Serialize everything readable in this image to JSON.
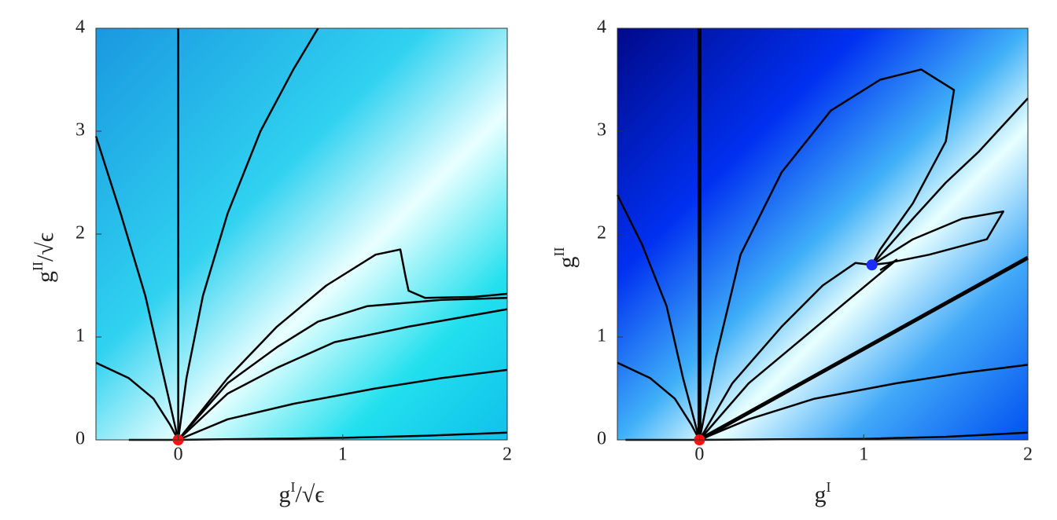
{
  "chart_data": [
    {
      "type": "flow",
      "xlabel": [
        "g",
        "I",
        "/√ϵ"
      ],
      "ylabel": [
        "g",
        "II",
        "/√ϵ"
      ],
      "xlim": [
        -0.5,
        2
      ],
      "ylim": [
        0,
        4
      ],
      "xticks": [
        0,
        1,
        2
      ],
      "yticks": [
        0,
        1,
        2,
        3,
        4
      ],
      "line_color": "#000000",
      "series": [
        {
          "x": [
            0,
            0
          ],
          "values": [
            0,
            4
          ],
          "width": 2.5
        },
        {
          "x": [
            -0.5,
            -0.35,
            -0.2,
            -0.1,
            0
          ],
          "values": [
            2.95,
            2.2,
            1.4,
            0.7,
            0
          ],
          "width": 2.5
        },
        {
          "x": [
            0,
            0.05,
            0.15,
            0.3,
            0.5,
            0.7,
            0.85
          ],
          "values": [
            0,
            0.6,
            1.4,
            2.2,
            3.0,
            3.6,
            4
          ],
          "width": 2.5
        },
        {
          "x": [
            -0.5,
            -0.3,
            -0.15,
            -0.05,
            0
          ],
          "values": [
            0.75,
            0.6,
            0.4,
            0.15,
            0
          ],
          "width": 2.5
        },
        {
          "x": [
            -0.3,
            0,
            0.5,
            1,
            1.5,
            2
          ],
          "values": [
            0,
            0,
            0.01,
            0.02,
            0.04,
            0.07
          ],
          "width": 2.5
        },
        {
          "x": [
            0,
            0.3,
            0.7,
            1.2,
            1.6,
            2
          ],
          "values": [
            0,
            0.2,
            0.35,
            0.5,
            0.6,
            0.68
          ],
          "width": 2.5
        },
        {
          "x": [
            0,
            0.3,
            0.6,
            0.95,
            1.4,
            2
          ],
          "values": [
            0,
            0.45,
            0.7,
            0.95,
            1.1,
            1.27
          ],
          "width": 2.5
        },
        {
          "x": [
            0,
            0.3,
            0.6,
            0.85,
            1.15,
            1.6,
            2
          ],
          "values": [
            0,
            0.55,
            0.9,
            1.15,
            1.3,
            1.36,
            1.38
          ],
          "width": 2.5
        },
        {
          "x": [
            0,
            0.3,
            0.6,
            0.9,
            1.2,
            1.35,
            1.38,
            1.4,
            1.5,
            1.8,
            2
          ],
          "values": [
            0,
            0.6,
            1.1,
            1.5,
            1.8,
            1.85,
            1.6,
            1.45,
            1.38,
            1.39,
            1.42
          ],
          "width": 2.5
        }
      ],
      "points": [
        {
          "x": 0,
          "y": 0,
          "color": "#ff1010"
        }
      ]
    },
    {
      "type": "flow",
      "xlabel": [
        "g",
        "I",
        ""
      ],
      "ylabel": [
        "g",
        "II",
        ""
      ],
      "xlim": [
        -0.5,
        2
      ],
      "ylim": [
        0,
        4
      ],
      "xticks": [
        0,
        1,
        2
      ],
      "yticks": [
        0,
        1,
        2,
        3,
        4
      ],
      "line_color": "#000000",
      "series": [
        {
          "x": [
            0,
            0
          ],
          "values": [
            0,
            4
          ],
          "width": 5
        },
        {
          "x": [
            -0.5,
            -0.35,
            -0.2,
            -0.1,
            0
          ],
          "values": [
            2.38,
            1.9,
            1.3,
            0.6,
            0
          ],
          "width": 2.5
        },
        {
          "x": [
            -0.5,
            -0.3,
            -0.15,
            -0.05,
            0
          ],
          "values": [
            0.75,
            0.6,
            0.4,
            0.15,
            0
          ],
          "width": 2.5
        },
        {
          "x": [
            -0.45,
            0,
            0.5,
            1,
            1.5,
            2
          ],
          "values": [
            0,
            0,
            0.005,
            0.01,
            0.03,
            0.07
          ],
          "width": 2.5
        },
        {
          "x": [
            0,
            0.3,
            0.7,
            1.2,
            1.6,
            2
          ],
          "values": [
            0,
            0.2,
            0.4,
            0.55,
            0.65,
            0.73
          ],
          "width": 2.5
        },
        {
          "x": [
            0,
            2
          ],
          "values": [
            0,
            1.77
          ],
          "width": 5
        },
        {
          "x": [
            0,
            0.1,
            0.25,
            0.5,
            0.8,
            1.1,
            1.35,
            1.55,
            1.5,
            1.3,
            1.1,
            1.05
          ],
          "values": [
            0,
            0.8,
            1.8,
            2.6,
            3.2,
            3.5,
            3.6,
            3.4,
            2.9,
            2.3,
            1.85,
            1.7
          ],
          "width": 2.5
        },
        {
          "x": [
            2,
            1.7,
            1.5,
            1.3,
            1.05
          ],
          "values": [
            3.32,
            2.8,
            2.5,
            2.15,
            1.7
          ],
          "width": 2.5
        },
        {
          "x": [
            0,
            0.2,
            0.5,
            0.75,
            0.95,
            1.05
          ],
          "values": [
            0,
            0.55,
            1.1,
            1.5,
            1.72,
            1.7
          ],
          "width": 2.5
        },
        {
          "x": [
            1.05,
            1.3,
            1.6,
            1.85,
            1.75,
            1.4,
            1.15,
            1.05
          ],
          "values": [
            1.7,
            1.95,
            2.15,
            2.22,
            1.95,
            1.8,
            1.72,
            1.7
          ],
          "width": 2.5
        },
        {
          "x": [
            0,
            0.3,
            0.6,
            0.9,
            1.2,
            1.1
          ],
          "values": [
            0,
            0.55,
            0.95,
            1.35,
            1.75,
            1.65
          ],
          "width": 2.5
        }
      ],
      "points": [
        {
          "x": 0,
          "y": 0,
          "color": "#ff1010"
        },
        {
          "x": 1.05,
          "y": 1.7,
          "color": "#1a2cff"
        }
      ]
    }
  ]
}
